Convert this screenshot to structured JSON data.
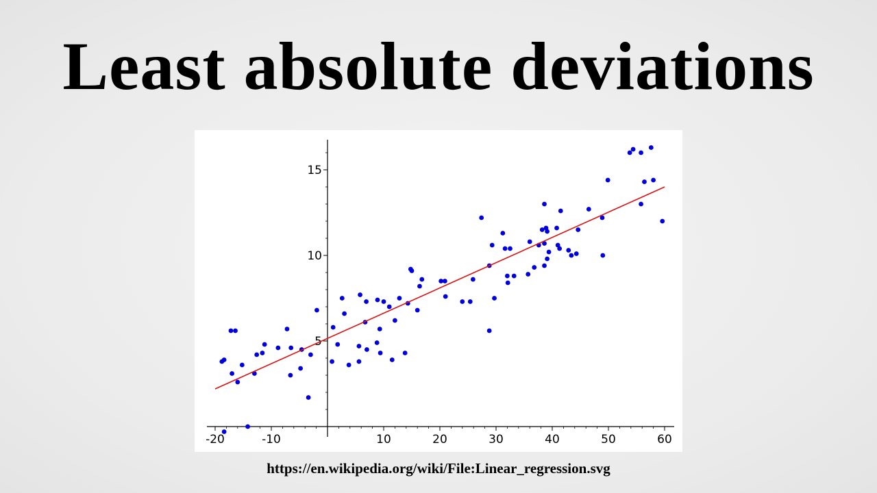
{
  "title": "Least absolute deviations",
  "source_url": "https://en.wikipedia.org/wiki/File:Linear_regression.svg",
  "colors": {
    "points": "#0000dd",
    "line": "#dd1111",
    "axes": "#000000"
  },
  "chart_data": {
    "type": "scatter",
    "title": "",
    "xlabel": "",
    "ylabel": "",
    "xlim": [
      -20,
      60
    ],
    "ylim": [
      0,
      16
    ],
    "xticks": [
      -20,
      -10,
      10,
      20,
      30,
      40,
      50,
      60
    ],
    "yticks": [
      5,
      10,
      15
    ],
    "grid": false,
    "legend": "none",
    "fit_line": {
      "x": [
        -20,
        60
      ],
      "y": [
        2.2,
        14.0
      ]
    },
    "points": [
      [
        -18.8,
        3.8
      ],
      [
        -18.4,
        3.9
      ],
      [
        -17.2,
        5.6
      ],
      [
        -16.4,
        5.6
      ],
      [
        -17.0,
        3.1
      ],
      [
        -16.0,
        2.6
      ],
      [
        -15.2,
        3.6
      ],
      [
        -13.0,
        3.1
      ],
      [
        -12.6,
        4.2
      ],
      [
        -11.6,
        4.3
      ],
      [
        -11.2,
        4.8
      ],
      [
        -8.8,
        4.6
      ],
      [
        -7.2,
        5.7
      ],
      [
        -6.5,
        4.6
      ],
      [
        -6.6,
        3.0
      ],
      [
        -4.8,
        3.4
      ],
      [
        -4.6,
        4.5
      ],
      [
        -3.0,
        4.2
      ],
      [
        -3.4,
        1.7
      ],
      [
        -1.9,
        6.8
      ],
      [
        -18.4,
        -0.3
      ],
      [
        -14.2,
        0.0
      ],
      [
        0.8,
        3.8
      ],
      [
        1.0,
        5.8
      ],
      [
        1.8,
        4.8
      ],
      [
        2.6,
        7.5
      ],
      [
        3.0,
        6.6
      ],
      [
        3.8,
        3.6
      ],
      [
        5.6,
        4.7
      ],
      [
        5.8,
        7.7
      ],
      [
        5.6,
        3.8
      ],
      [
        6.7,
        6.1
      ],
      [
        6.9,
        7.3
      ],
      [
        7.0,
        4.5
      ],
      [
        8.8,
        4.9
      ],
      [
        8.9,
        7.4
      ],
      [
        9.3,
        5.7
      ],
      [
        9.4,
        4.3
      ],
      [
        10.0,
        7.3
      ],
      [
        11.0,
        7.0
      ],
      [
        11.5,
        3.9
      ],
      [
        12.0,
        6.2
      ],
      [
        12.8,
        7.5
      ],
      [
        13.8,
        4.3
      ],
      [
        14.3,
        7.2
      ],
      [
        14.8,
        9.2
      ],
      [
        15.0,
        9.1
      ],
      [
        16.0,
        6.8
      ],
      [
        16.4,
        8.2
      ],
      [
        16.8,
        8.6
      ],
      [
        20.2,
        8.5
      ],
      [
        20.9,
        8.5
      ],
      [
        21.0,
        7.6
      ],
      [
        24.0,
        7.3
      ],
      [
        25.4,
        7.3
      ],
      [
        25.9,
        8.6
      ],
      [
        27.4,
        12.2
      ],
      [
        28.8,
        5.6
      ],
      [
        28.8,
        9.4
      ],
      [
        29.3,
        10.6
      ],
      [
        29.7,
        7.5
      ],
      [
        31.2,
        11.3
      ],
      [
        31.6,
        10.4
      ],
      [
        32.0,
        8.8
      ],
      [
        32.1,
        8.4
      ],
      [
        32.5,
        10.4
      ],
      [
        33.2,
        8.8
      ],
      [
        35.7,
        8.9
      ],
      [
        36.0,
        10.8
      ],
      [
        36.8,
        9.3
      ],
      [
        37.6,
        10.6
      ],
      [
        38.2,
        11.5
      ],
      [
        38.6,
        13.0
      ],
      [
        38.6,
        10.7
      ],
      [
        38.6,
        9.4
      ],
      [
        38.9,
        11.6
      ],
      [
        39.1,
        9.8
      ],
      [
        39.1,
        11.4
      ],
      [
        39.4,
        10.2
      ],
      [
        40.8,
        11.6
      ],
      [
        41.0,
        10.6
      ],
      [
        41.3,
        10.4
      ],
      [
        41.5,
        12.6
      ],
      [
        42.9,
        10.3
      ],
      [
        43.4,
        10.0
      ],
      [
        44.3,
        10.1
      ],
      [
        44.6,
        11.5
      ],
      [
        46.5,
        12.7
      ],
      [
        48.9,
        12.2
      ],
      [
        49.0,
        10.0
      ],
      [
        49.9,
        14.4
      ],
      [
        53.8,
        16.0
      ],
      [
        54.4,
        16.2
      ],
      [
        55.8,
        16.0
      ],
      [
        55.8,
        13.0
      ],
      [
        56.4,
        14.3
      ],
      [
        57.6,
        16.3
      ],
      [
        58.0,
        14.4
      ],
      [
        59.6,
        12.0
      ]
    ]
  }
}
